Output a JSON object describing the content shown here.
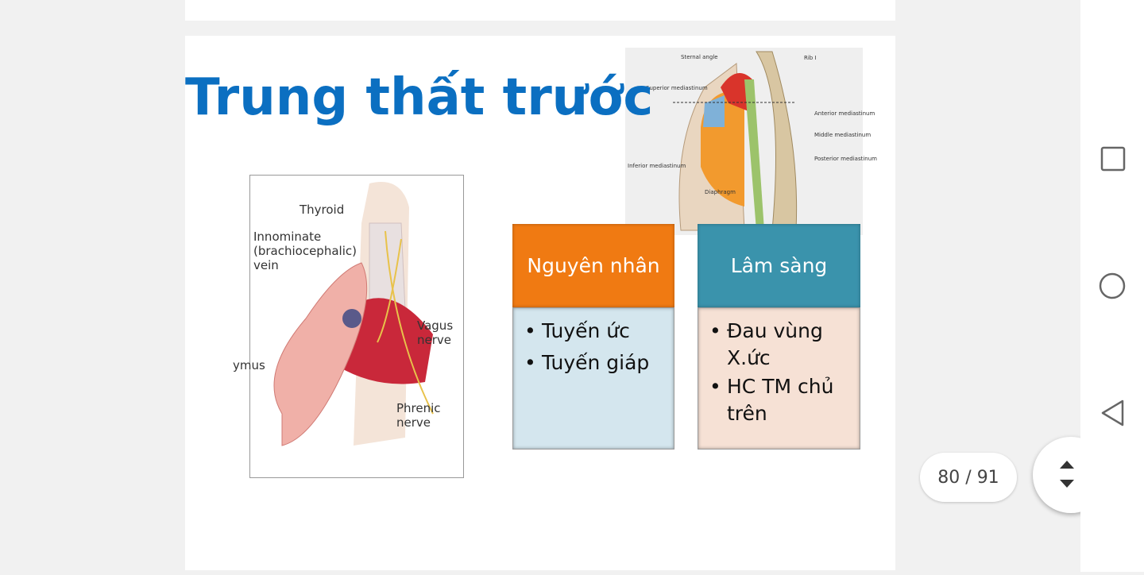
{
  "slide": {
    "title": "Trung thất trước",
    "left_image_labels": [
      "Thyroid",
      "Innominate (brachiocephalic) vein",
      "Vagus nerve",
      "ymus",
      "Phrenic nerve"
    ],
    "right_image_labels": [
      "Sternal angle",
      "Rib I",
      "Superior mediastinum",
      "Anterior mediastinum",
      "Middle mediastinum",
      "Posterior mediastinum",
      "Inferior mediastinum",
      "Diaphragm"
    ],
    "boxes": [
      {
        "header": "Nguyên nhân",
        "items": [
          "Tuyến ức",
          "Tuyến giáp"
        ]
      },
      {
        "header": "Lâm sàng",
        "items": [
          "Đau vùng X.ức",
          "HC TM chủ trên"
        ]
      }
    ]
  },
  "viewer": {
    "page_indicator": "80 / 91"
  }
}
